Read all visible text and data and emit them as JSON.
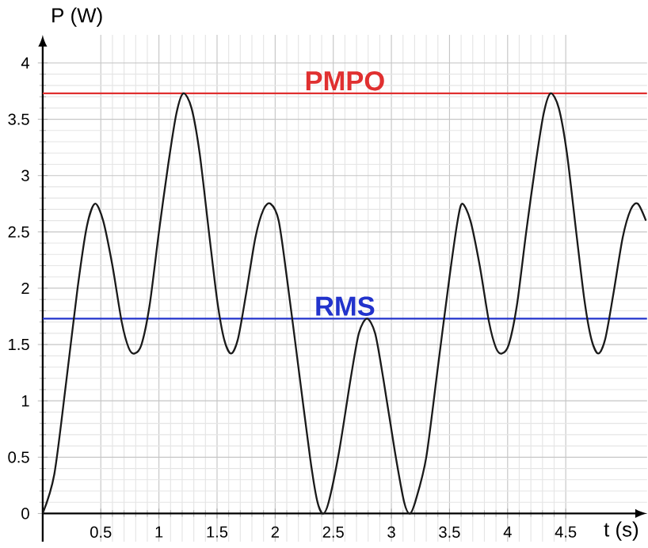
{
  "chart_data": {
    "type": "line",
    "xlabel": "t (s)",
    "ylabel": "P (W)",
    "x": [
      0,
      0.1,
      0.2,
      0.3,
      0.38,
      0.45,
      0.52,
      0.6,
      0.68,
      0.74,
      0.79,
      0.85,
      0.92,
      1.0,
      1.08,
      1.15,
      1.21,
      1.28,
      1.35,
      1.43,
      1.5,
      1.56,
      1.62,
      1.68,
      1.75,
      1.83,
      1.9,
      1.96,
      2.03,
      2.1,
      2.2,
      2.3,
      2.36,
      2.41,
      2.46,
      2.55,
      2.65,
      2.72,
      2.79,
      2.86,
      2.93,
      3.03,
      3.11,
      3.16,
      3.21,
      3.3,
      3.4,
      3.5,
      3.57,
      3.61,
      3.68,
      3.76,
      3.84,
      3.9,
      3.95,
      4.01,
      4.08,
      4.16,
      4.24,
      4.31,
      4.37,
      4.44,
      4.51,
      4.59,
      4.66,
      4.72,
      4.78,
      4.84,
      4.91,
      4.99,
      5.06,
      5.12,
      5.19
    ],
    "series": [
      {
        "color": "#1a1a1a",
        "values": [
          0,
          0.35,
          1.15,
          2.0,
          2.55,
          2.75,
          2.6,
          2.2,
          1.7,
          1.47,
          1.42,
          1.5,
          1.85,
          2.5,
          3.1,
          3.55,
          3.73,
          3.6,
          3.2,
          2.5,
          1.9,
          1.55,
          1.42,
          1.55,
          1.95,
          2.45,
          2.7,
          2.75,
          2.6,
          2.1,
          1.3,
          0.5,
          0.12,
          0,
          0.1,
          0.55,
          1.2,
          1.6,
          1.73,
          1.6,
          1.2,
          0.55,
          0.1,
          0,
          0.12,
          0.5,
          1.3,
          2.1,
          2.6,
          2.75,
          2.6,
          2.2,
          1.7,
          1.47,
          1.42,
          1.5,
          1.85,
          2.5,
          3.1,
          3.55,
          3.73,
          3.6,
          3.2,
          2.5,
          1.9,
          1.55,
          1.42,
          1.55,
          1.95,
          2.45,
          2.7,
          2.75,
          2.6
        ]
      }
    ],
    "xlim": [
      0,
      5.2
    ],
    "ylim": [
      -0.25,
      4.25
    ],
    "xticks": [
      0.5,
      1,
      1.5,
      2,
      2.5,
      3,
      3.5,
      4,
      4.5
    ],
    "yticks": [
      0,
      0.5,
      1,
      1.5,
      2,
      2.5,
      3,
      3.5,
      4
    ],
    "grid": true,
    "marker": "none",
    "line_style": "solid",
    "ref_lines": [
      {
        "axis": "y",
        "value": 3.73,
        "label": "PMPO",
        "color": "#e03030"
      },
      {
        "axis": "y",
        "value": 1.73,
        "label": "RMS",
        "color": "#2233cc"
      }
    ]
  }
}
